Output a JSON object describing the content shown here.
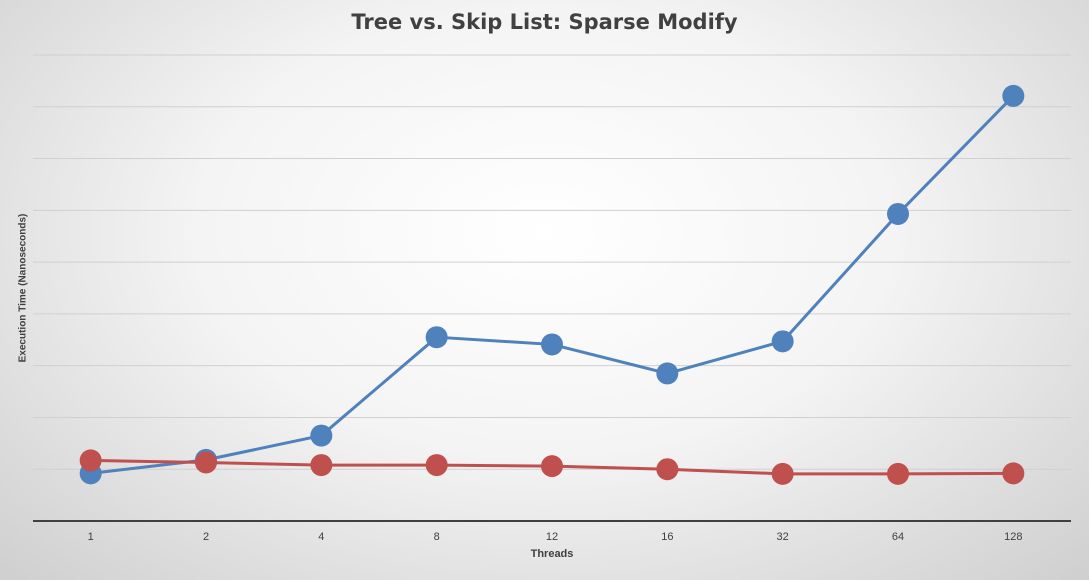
{
  "chart_data": {
    "type": "line",
    "title": "Tree vs. Skip List: Sparse Modify",
    "xlabel": "Threads",
    "ylabel": "Execution Time (Nanoseconds)",
    "categories": [
      "1",
      "2",
      "4",
      "8",
      "12",
      "16",
      "32",
      "64",
      "128"
    ],
    "ylim": [
      0,
      900
    ],
    "grid": true,
    "y_ticks_labeled": false,
    "series": [
      {
        "color": "#4f81bd",
        "values": [
          92,
          118,
          165,
          355,
          341,
          285,
          347,
          593,
          821
        ]
      },
      {
        "color": "#c0504d",
        "values": [
          117,
          113,
          108,
          108,
          106,
          100,
          91,
          91,
          92
        ]
      }
    ]
  }
}
